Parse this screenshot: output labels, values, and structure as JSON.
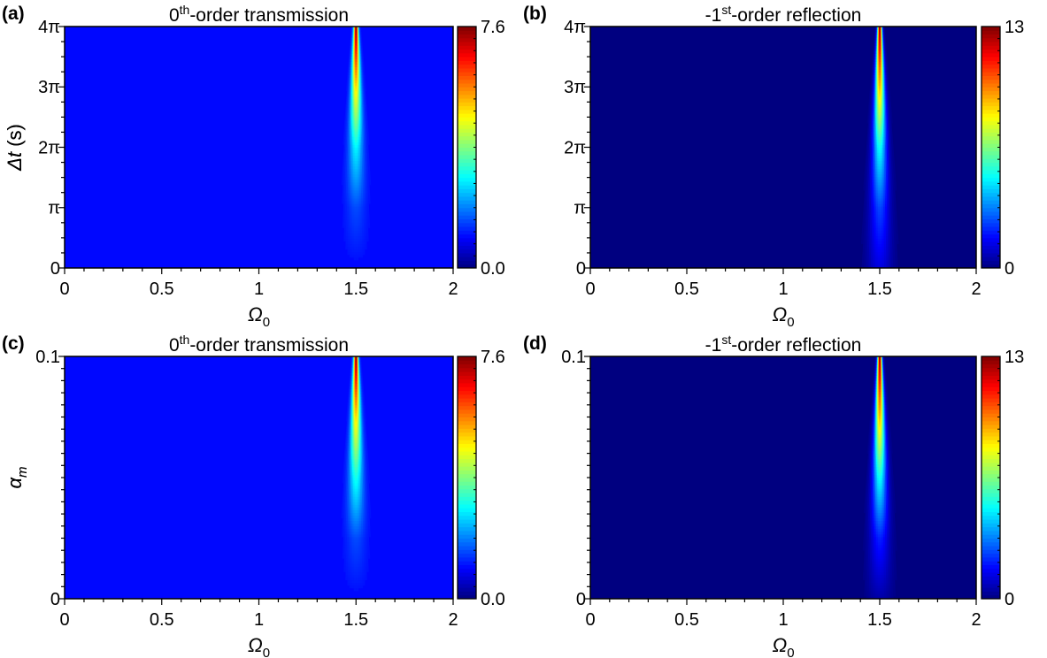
{
  "chart_data": [
    {
      "type": "heatmap",
      "panel_label": "(a)",
      "title_main": "0",
      "title_sup": "th",
      "title_rest": "-order transmission",
      "xlabel_main": "Ω",
      "xlabel_sub": "0",
      "ylabel_main": "Δt",
      "ylabel_rest": " (s)",
      "xlim": [
        0,
        2
      ],
      "ylim": [
        0,
        12.566
      ],
      "x_ticks": [
        {
          "value": 0,
          "label": "0"
        },
        {
          "value": 0.5,
          "label": "0.5"
        },
        {
          "value": 1,
          "label": "1"
        },
        {
          "value": 1.5,
          "label": "1.5"
        },
        {
          "value": 2,
          "label": "2"
        }
      ],
      "y_ticks": [
        {
          "value": 0,
          "label": "0"
        },
        {
          "value": 3.1416,
          "label": "π"
        },
        {
          "value": 6.2832,
          "label": "2π"
        },
        {
          "value": 9.4248,
          "label": "3π"
        },
        {
          "value": 12.566,
          "label": "4π"
        }
      ],
      "colorbar": {
        "min_label": "0.0",
        "max_label": "7.6",
        "min": 0.0,
        "max": 7.6,
        "colormap": "jet"
      },
      "background_value": 1.0,
      "peak": {
        "x_center": 1.5,
        "max_value": 7.6
      },
      "series": [
        {
          "name": "peak_center_value_vs_y",
          "x": [
            0,
            3.14,
            6.28,
            9.42,
            12.57
          ],
          "values": [
            1.0,
            1.5,
            2.8,
            5.0,
            7.6
          ]
        }
      ]
    },
    {
      "type": "heatmap",
      "panel_label": "(b)",
      "title_main": "-1",
      "title_sup": "st",
      "title_rest": "-order reflection",
      "xlabel_main": "Ω",
      "xlabel_sub": "0",
      "ylabel_main": "Δt",
      "ylabel_rest": " (s)",
      "xlim": [
        0,
        2
      ],
      "ylim": [
        0,
        12.566
      ],
      "x_ticks": [
        {
          "value": 0,
          "label": "0"
        },
        {
          "value": 0.5,
          "label": "0.5"
        },
        {
          "value": 1,
          "label": "1"
        },
        {
          "value": 1.5,
          "label": "1.5"
        },
        {
          "value": 2,
          "label": "2"
        }
      ],
      "y_ticks": [
        {
          "value": 0,
          "label": "0"
        },
        {
          "value": 3.1416,
          "label": "π"
        },
        {
          "value": 6.2832,
          "label": "2π"
        },
        {
          "value": 9.4248,
          "label": "3π"
        },
        {
          "value": 12.566,
          "label": "4π"
        }
      ],
      "colorbar": {
        "min_label": "0",
        "max_label": "13",
        "min": 0,
        "max": 13,
        "colormap": "jet"
      },
      "background_value": 0.0,
      "peak": {
        "x_center": 1.5,
        "max_value": 13
      },
      "series": [
        {
          "name": "peak_center_value_vs_y",
          "x": [
            0,
            3.14,
            6.28,
            9.42,
            12.57
          ],
          "values": [
            1.2,
            2.5,
            5.0,
            9.0,
            13.0
          ]
        }
      ]
    },
    {
      "type": "heatmap",
      "panel_label": "(c)",
      "title_main": "0",
      "title_sup": "th",
      "title_rest": "-order transmission",
      "xlabel_main": "Ω",
      "xlabel_sub": "0",
      "ylabel_main": "α",
      "ylabel_sub": "m",
      "xlim": [
        0,
        2
      ],
      "ylim": [
        0,
        0.1
      ],
      "x_ticks": [
        {
          "value": 0,
          "label": "0"
        },
        {
          "value": 0.5,
          "label": "0.5"
        },
        {
          "value": 1,
          "label": "1"
        },
        {
          "value": 1.5,
          "label": "1.5"
        },
        {
          "value": 2,
          "label": "2"
        }
      ],
      "y_ticks": [
        {
          "value": 0,
          "label": "0"
        },
        {
          "value": 0.1,
          "label": "0.1"
        }
      ],
      "colorbar": {
        "min_label": "0.0",
        "max_label": "7.6",
        "min": 0.0,
        "max": 7.6,
        "colormap": "jet"
      },
      "background_value": 1.0,
      "peak": {
        "x_center": 1.5,
        "max_value": 7.6
      },
      "series": [
        {
          "name": "peak_center_value_vs_y",
          "x": [
            0,
            0.025,
            0.05,
            0.075,
            0.1
          ],
          "values": [
            1.0,
            1.5,
            3.0,
            5.0,
            7.6
          ]
        }
      ]
    },
    {
      "type": "heatmap",
      "panel_label": "(d)",
      "title_main": "-1",
      "title_sup": "st",
      "title_rest": "-order reflection",
      "xlabel_main": "Ω",
      "xlabel_sub": "0",
      "ylabel_main": "α",
      "ylabel_sub": "m",
      "xlim": [
        0,
        2
      ],
      "ylim": [
        0,
        0.1
      ],
      "x_ticks": [
        {
          "value": 0,
          "label": "0"
        },
        {
          "value": 0.5,
          "label": "0.5"
        },
        {
          "value": 1,
          "label": "1"
        },
        {
          "value": 1.5,
          "label": "1.5"
        },
        {
          "value": 2,
          "label": "2"
        }
      ],
      "y_ticks": [
        {
          "value": 0,
          "label": "0"
        },
        {
          "value": 0.1,
          "label": "0.1"
        }
      ],
      "colorbar": {
        "min_label": "0",
        "max_label": "13",
        "min": 0,
        "max": 13,
        "colormap": "jet"
      },
      "background_value": 0.0,
      "peak": {
        "x_center": 1.5,
        "max_value": 13
      },
      "series": [
        {
          "name": "peak_center_value_vs_y",
          "x": [
            0,
            0.025,
            0.05,
            0.075,
            0.1
          ],
          "values": [
            0.5,
            2.0,
            5.0,
            9.0,
            13.0
          ]
        }
      ]
    }
  ]
}
